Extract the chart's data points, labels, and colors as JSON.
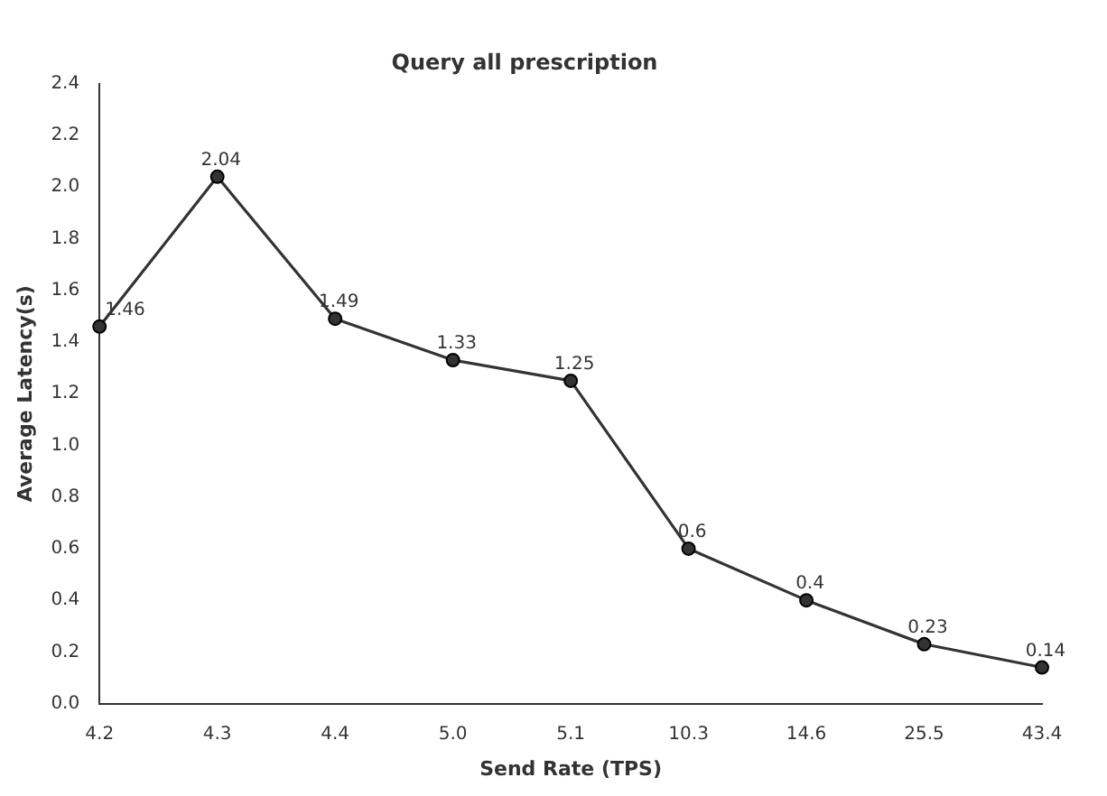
{
  "chart_data": {
    "type": "line",
    "title": "Query all prescription",
    "xlabel": "Send Rate (TPS)",
    "ylabel": "Average Latency(s)",
    "categories": [
      "4.2",
      "4.3",
      "4.4",
      "5.0",
      "5.1",
      "10.3",
      "14.6",
      "25.5",
      "43.4"
    ],
    "series": [
      {
        "color": "#333333",
        "values": [
          1.46,
          2.04,
          1.49,
          1.33,
          1.25,
          0.6,
          0.4,
          0.23,
          0.14
        ]
      }
    ],
    "ylim": [
      0,
      2.4
    ],
    "yticks": [
      {
        "value": 0,
        "label": "0.0"
      },
      0.2,
      0.4,
      0.6,
      0.8,
      {
        "value": 1,
        "label": "1.0"
      },
      1.2,
      1.4,
      1.6,
      1.8,
      {
        "value": 2,
        "label": "2.0"
      },
      2.2,
      2.4
    ],
    "data_labels": true,
    "grid": false,
    "legend": false,
    "marker": "circle",
    "line_style": "solid"
  }
}
